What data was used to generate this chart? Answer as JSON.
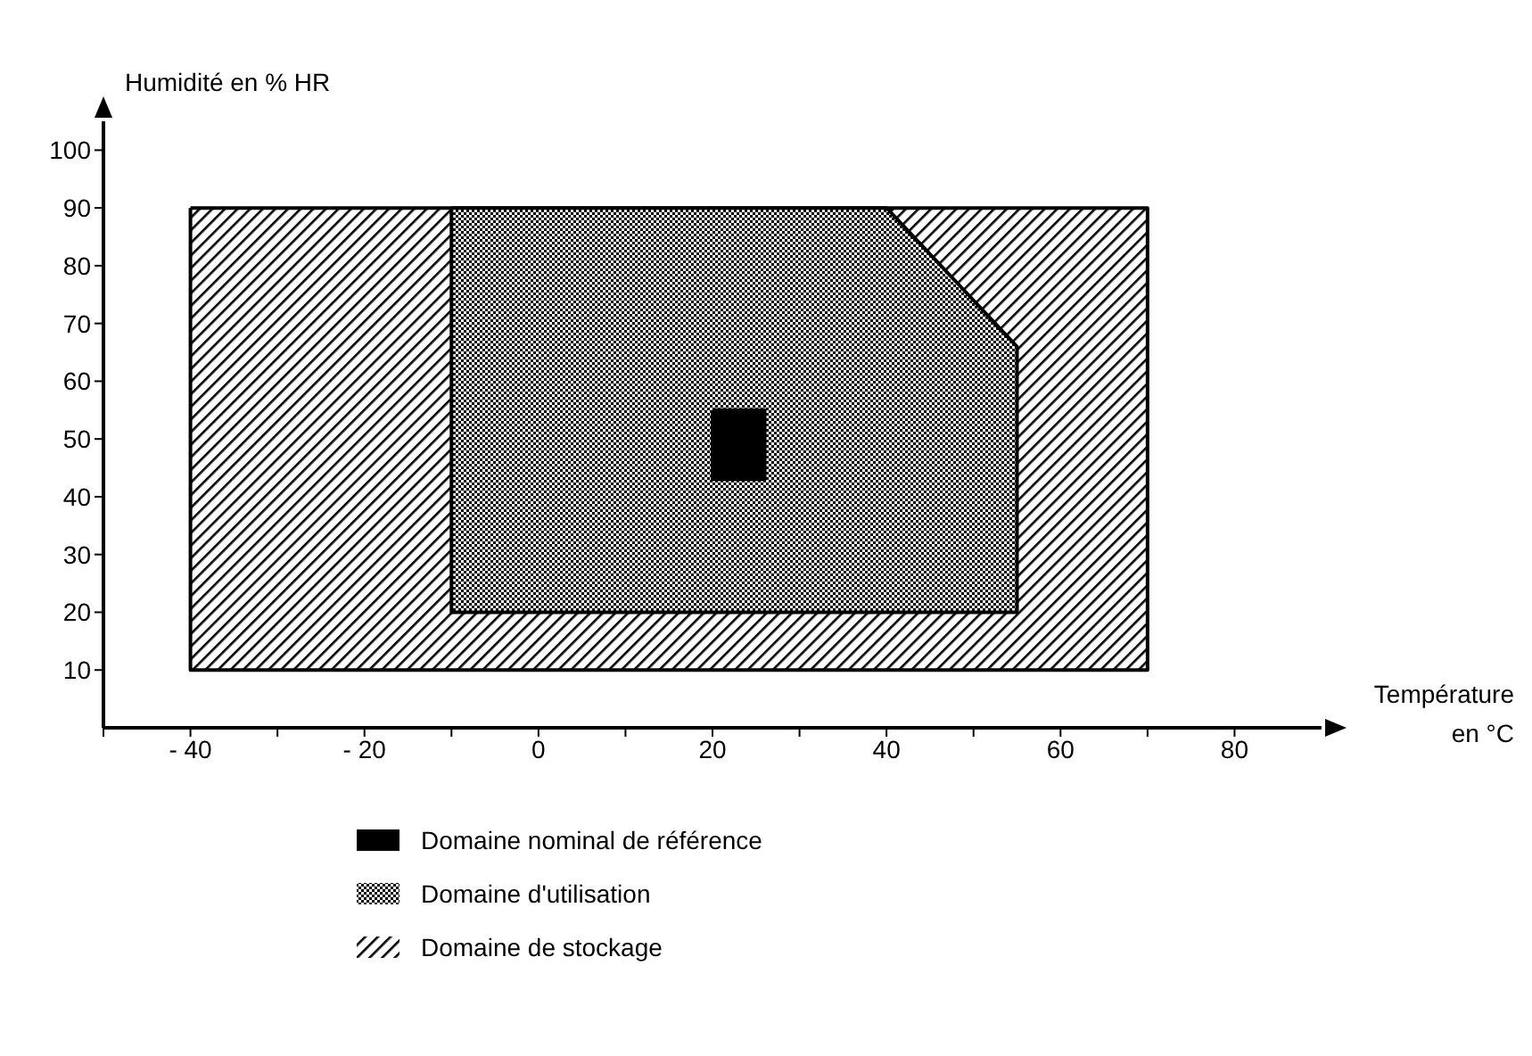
{
  "chart_data": {
    "type": "area",
    "xlabel": "Température en °C",
    "ylabel": "Humidité en % HR",
    "series": [
      {
        "name": "Domaine nominal de référence",
        "color": "#000000",
        "x": [
          20,
          26,
          26,
          20,
          20
        ],
        "values": [
          55,
          55,
          43,
          43,
          55
        ]
      },
      {
        "name": "Domaine d'utilisation",
        "color": "#000000",
        "x": [
          -10,
          40,
          55,
          55,
          -10,
          -10
        ],
        "values": [
          90,
          90,
          66,
          20,
          20,
          90
        ]
      },
      {
        "name": "Domaine de stockage",
        "color": "#000000",
        "x": [
          -40,
          70,
          70,
          -40,
          -40
        ],
        "values": [
          90,
          90,
          10,
          10,
          90
        ]
      }
    ],
    "xlim": [
      -50,
      90
    ],
    "ylim": [
      0,
      105
    ],
    "xticks": [
      {
        "value": -50,
        "label": null
      },
      -40,
      {
        "value": -30,
        "label": null
      },
      -20,
      {
        "value": -10,
        "label": null
      },
      0,
      {
        "value": 10,
        "label": null
      },
      20,
      {
        "value": 30,
        "label": null
      },
      40,
      {
        "value": 50,
        "label": null
      },
      60,
      {
        "value": 70,
        "label": null
      },
      80
    ],
    "yticks": [
      10,
      20,
      30,
      40,
      50,
      60,
      70,
      80,
      90,
      100
    ],
    "marker": "none",
    "line_style": "solid",
    "legend": "bottom"
  }
}
